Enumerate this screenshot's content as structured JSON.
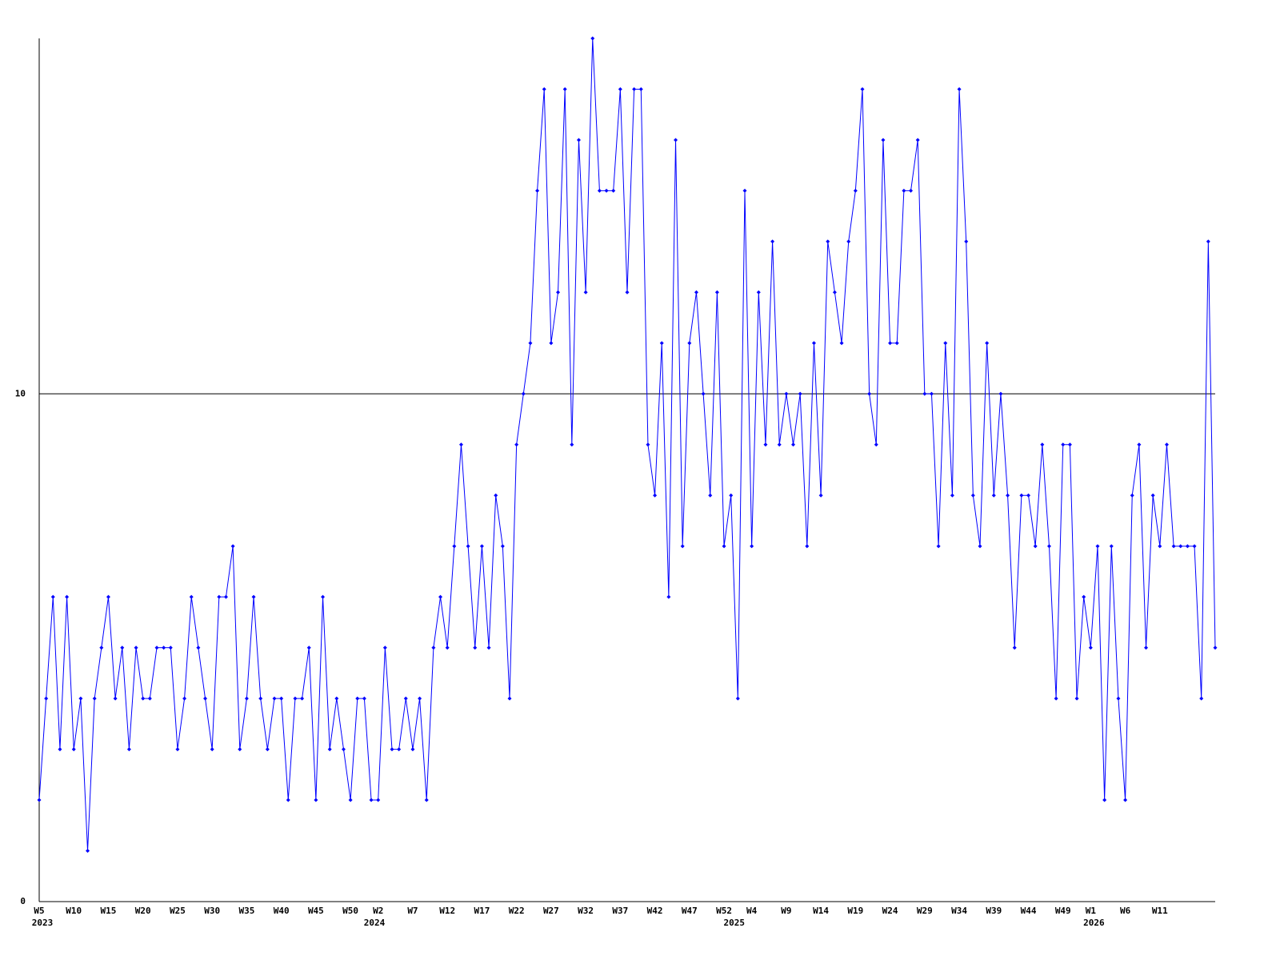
{
  "chart_data": {
    "type": "line",
    "color": "#0000ff",
    "grid": true,
    "ylim": [
      0,
      17
    ],
    "yticks": [
      0,
      10
    ],
    "categories": [
      "W5",
      null,
      null,
      null,
      null,
      "W10",
      null,
      null,
      null,
      null,
      "W15",
      null,
      null,
      null,
      null,
      "W20",
      null,
      null,
      null,
      null,
      "W25",
      null,
      null,
      null,
      null,
      "W30",
      null,
      null,
      null,
      null,
      "W35",
      null,
      null,
      null,
      null,
      "W40",
      null,
      null,
      null,
      null,
      "W45",
      null,
      null,
      null,
      null,
      "W50",
      null,
      null,
      null,
      "W2",
      null,
      null,
      null,
      null,
      "W7",
      null,
      null,
      null,
      null,
      "W12",
      null,
      null,
      null,
      null,
      "W17",
      null,
      null,
      null,
      null,
      "W22",
      null,
      null,
      null,
      null,
      "W27",
      null,
      null,
      null,
      null,
      "W32",
      null,
      null,
      null,
      null,
      "W37",
      null,
      null,
      null,
      null,
      "W42",
      null,
      null,
      null,
      null,
      "W47",
      null,
      null,
      null,
      null,
      "W52",
      null,
      null,
      null,
      "W4",
      null,
      null,
      null,
      null,
      "W9",
      null,
      null,
      null,
      null,
      "W14",
      null,
      null,
      null,
      null,
      "W19",
      null,
      null,
      null,
      null,
      "W24",
      null,
      null,
      null,
      null,
      "W29",
      null,
      null,
      null,
      null,
      "W34",
      null,
      null,
      null,
      null,
      "W39",
      null,
      null,
      null,
      null,
      "W44",
      null,
      null,
      null,
      null,
      "W49",
      null,
      null,
      null,
      "W1",
      null,
      null,
      null,
      null,
      "W6",
      null,
      null,
      null,
      null,
      "W11",
      null,
      null,
      null,
      null,
      null,
      null,
      null,
      null
    ],
    "category_years": [
      "2023",
      null,
      null,
      null,
      null,
      null,
      null,
      null,
      null,
      null,
      null,
      null,
      null,
      null,
      null,
      null,
      null,
      null,
      null,
      null,
      null,
      null,
      null,
      null,
      null,
      null,
      null,
      null,
      null,
      null,
      null,
      null,
      null,
      null,
      null,
      null,
      null,
      null,
      null,
      null,
      null,
      null,
      null,
      null,
      null,
      null,
      null,
      null,
      "2024",
      null,
      null,
      null,
      null,
      null,
      null,
      null,
      null,
      null,
      null,
      null,
      null,
      null,
      null,
      null,
      null,
      null,
      null,
      null,
      null,
      null,
      null,
      null,
      null,
      null,
      null,
      null,
      null,
      null,
      null,
      null,
      null,
      null,
      null,
      null,
      null,
      null,
      null,
      null,
      null,
      null,
      null,
      null,
      null,
      null,
      null,
      null,
      null,
      null,
      null,
      null,
      "2025",
      null,
      null,
      null,
      null,
      null,
      null,
      null,
      null,
      null,
      null,
      null,
      null,
      null,
      null,
      null,
      null,
      null,
      null,
      null,
      null,
      null,
      null,
      null,
      null,
      null,
      null,
      null,
      null,
      null,
      null,
      null,
      null,
      null,
      null,
      null,
      null,
      null,
      null,
      null,
      null,
      null,
      null,
      null,
      null,
      null,
      null,
      null,
      null,
      null,
      null,
      null,
      "2026",
      null,
      null,
      null,
      null,
      null,
      null,
      null,
      null,
      null,
      null,
      null,
      null,
      null,
      null,
      null,
      null,
      null,
      null
    ],
    "values": [
      2,
      4,
      6,
      3,
      6,
      3,
      4,
      1,
      4,
      5,
      6,
      4,
      5,
      3,
      5,
      4,
      4,
      5,
      5,
      5,
      3,
      4,
      6,
      5,
      4,
      3,
      6,
      6,
      7,
      3,
      4,
      6,
      4,
      3,
      4,
      4,
      2,
      4,
      4,
      5,
      2,
      6,
      3,
      4,
      3,
      2,
      4,
      4,
      2,
      2,
      5,
      3,
      3,
      4,
      3,
      4,
      2,
      5,
      6,
      5,
      7,
      9,
      7,
      5,
      7,
      5,
      8,
      7,
      4,
      9,
      10,
      11,
      14,
      16,
      11,
      12,
      16,
      9,
      15,
      12,
      17,
      14,
      14,
      14,
      16,
      12,
      16,
      16,
      9,
      8,
      11,
      6,
      15,
      7,
      11,
      12,
      10,
      8,
      12,
      7,
      8,
      4,
      14,
      7,
      12,
      9,
      13,
      9,
      10,
      9,
      10,
      7,
      11,
      8,
      13,
      12,
      11,
      13,
      14,
      16,
      10,
      9,
      15,
      11,
      11,
      14,
      14,
      15,
      10,
      10,
      7,
      11,
      8,
      16,
      13,
      8,
      7,
      11,
      8,
      10,
      8,
      5,
      8,
      8,
      7,
      9,
      7,
      4,
      9,
      9,
      4,
      6,
      5,
      7,
      2,
      7,
      4,
      2,
      8,
      9,
      5,
      8,
      7,
      9,
      7,
      7,
      7,
      7,
      4,
      13,
      5
    ]
  }
}
